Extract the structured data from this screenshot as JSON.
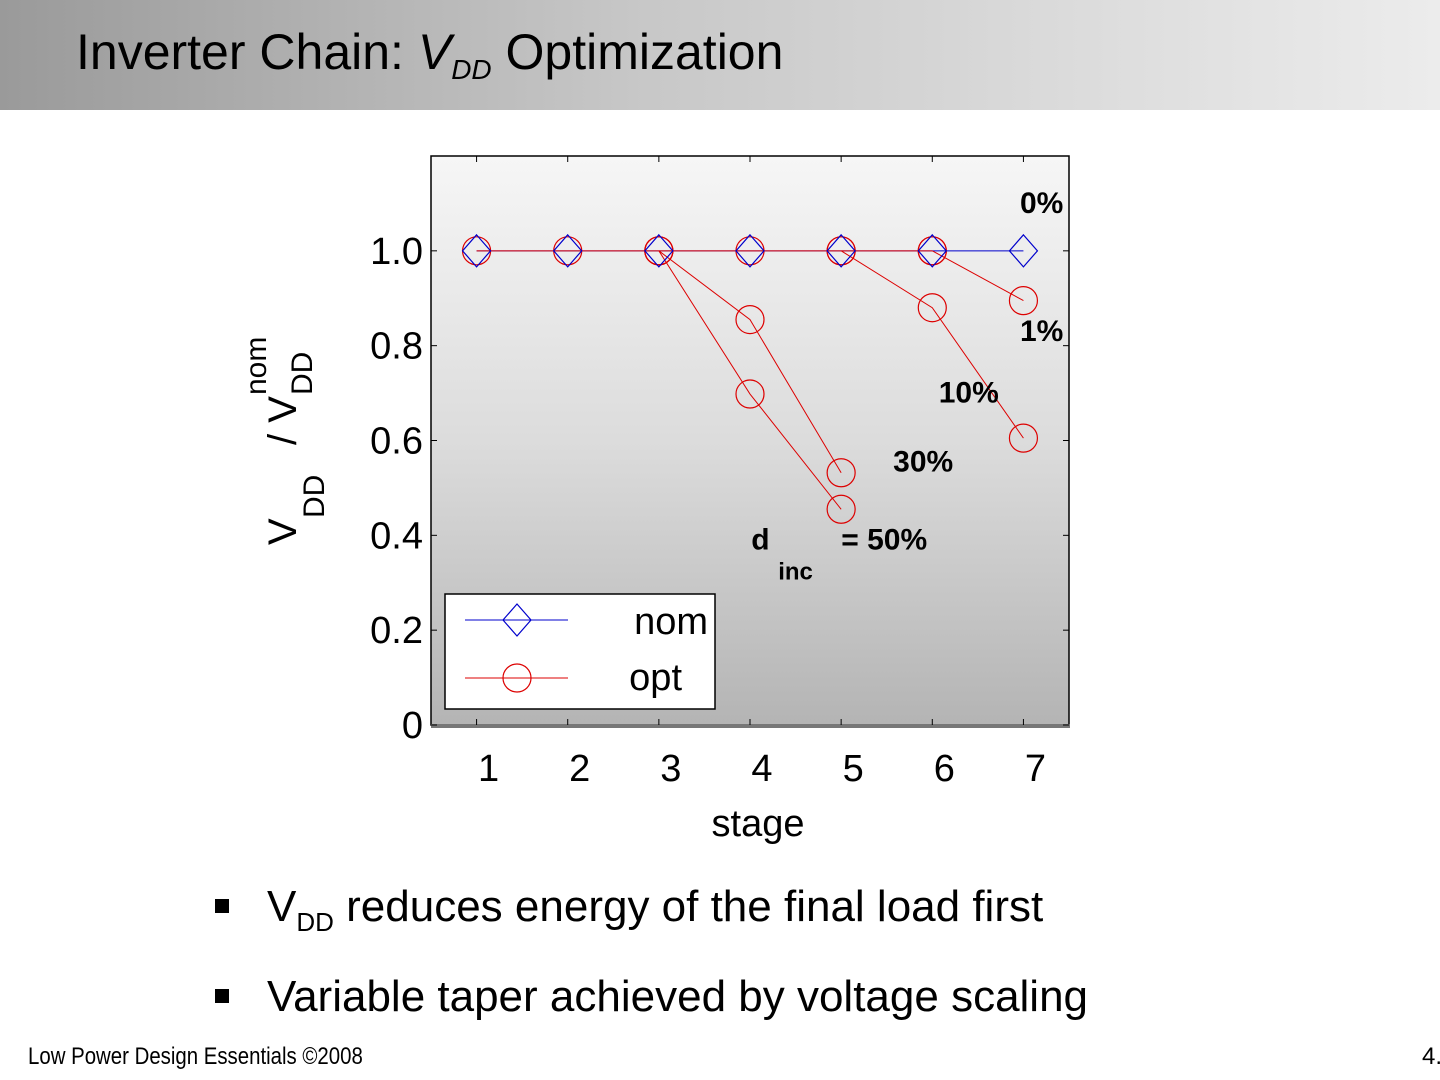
{
  "slide": {
    "title_prefix": "Inverter Chain: ",
    "title_var": "V",
    "title_sub": "DD",
    "title_suffix": " Optimization"
  },
  "bullets": [
    {
      "pre": "V",
      "sub": "DD",
      "text": " reduces energy of the final load first"
    },
    {
      "pre": "",
      "sub": "",
      "text": "Variable taper achieved by voltage scaling"
    }
  ],
  "footer": {
    "left": "Low Power Design Essentials ©2008",
    "right": "4."
  },
  "chart_data": {
    "type": "line",
    "xlabel": "stage",
    "ylabel": {
      "main": "V",
      "main_sub": "DD",
      "slash": "/ V",
      "sub": "DD",
      "sup": "nom"
    },
    "x_ticks": [
      "1",
      "2",
      "3",
      "4",
      "5",
      "6",
      "7"
    ],
    "y_ticks": [
      "0",
      "0.2",
      "0.4",
      "0.6",
      "0.8",
      "1.0"
    ],
    "y_tick_values": [
      0,
      0.2,
      0.4,
      0.6,
      0.8,
      1.0
    ],
    "xlim": [
      0.5,
      7.5
    ],
    "ylim": [
      0,
      1.2
    ],
    "grid": false,
    "legend": {
      "placement": "bottom-left",
      "entries": [
        {
          "name": "nom",
          "marker": "diamond",
          "color": "#0000cc"
        },
        {
          "name": "opt",
          "marker": "circle",
          "color": "#dd0000"
        }
      ]
    },
    "series": [
      {
        "name": "nom",
        "label": "0%",
        "color": "#0000cc",
        "marker": "diamond",
        "x": [
          1,
          2,
          3,
          4,
          5,
          6,
          7
        ],
        "values": [
          1.0,
          1.0,
          1.0,
          1.0,
          1.0,
          1.0,
          1.0
        ]
      },
      {
        "name": "opt",
        "label": "0%",
        "color": "#dd0000",
        "marker": "circle",
        "x": [
          1,
          2,
          3,
          4,
          5,
          6
        ],
        "values": [
          1.0,
          1.0,
          1.0,
          1.0,
          1.0,
          1.0
        ]
      },
      {
        "name": "opt",
        "label": "1%",
        "color": "#dd0000",
        "marker": "circle",
        "x": [
          6,
          7
        ],
        "values": [
          1.0,
          0.895
        ]
      },
      {
        "name": "opt",
        "label": "10%",
        "color": "#dd0000",
        "marker": "circle",
        "x": [
          5,
          6,
          7
        ],
        "values": [
          1.0,
          0.88,
          0.605
        ]
      },
      {
        "name": "opt",
        "label": "30%",
        "color": "#dd0000",
        "marker": "circle",
        "x": [
          3,
          4,
          5
        ],
        "values": [
          1.0,
          0.855,
          0.532
        ]
      },
      {
        "name": "opt",
        "label": "50%",
        "color": "#dd0000",
        "marker": "circle",
        "x": [
          3,
          4,
          5
        ],
        "values": [
          1.0,
          0.698,
          0.455
        ]
      }
    ],
    "annotations": [
      {
        "text": "0%",
        "x": 7.2,
        "y": 1.08
      },
      {
        "text": "1%",
        "x": 7.2,
        "y": 0.81
      },
      {
        "text": "10%",
        "x": 6.4,
        "y": 0.68
      },
      {
        "text": "30%",
        "x": 5.9,
        "y": 0.535
      },
      {
        "text_pre": "d",
        "text_sub": "inc",
        "text_post": "= 50%",
        "x": 4.2,
        "y": 0.37
      }
    ]
  }
}
